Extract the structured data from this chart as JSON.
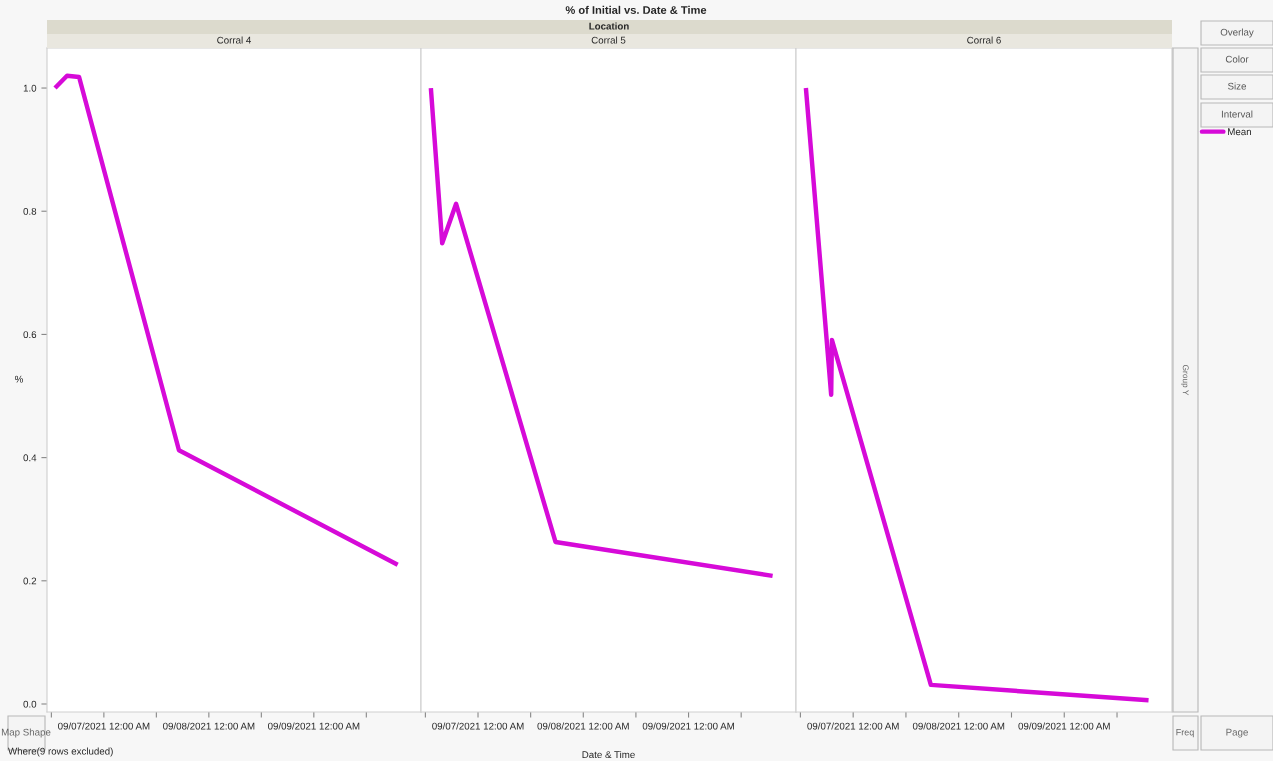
{
  "chart_data": [
    {
      "type": "line",
      "title": "Corral 4",
      "ylabel": "%",
      "grid": false,
      "tick_labels": "xy",
      "annotations": [
        "% of Initial vs. Date & Time",
        "Location",
        "Overlay",
        "Color",
        "Size",
        "Interval",
        "Group Y",
        "Map Shape",
        "Freq",
        "Page",
        "Where(9 rows excluded)"
      ],
      "xlim": [
        "2021-09-06T11:00",
        "2021-09-10T00:30"
      ],
      "ylim": [
        -0.013,
        1.065
      ],
      "xticks": [
        {
          "value": "2021-09-06T12:00",
          "label": null
        },
        {
          "value": "2021-09-07T00:00",
          "label": "09/07/2021 12:00 AM"
        },
        {
          "value": "2021-09-07T12:00",
          "label": null
        },
        {
          "value": "2021-09-08T00:00",
          "label": "09/08/2021 12:00 AM"
        },
        {
          "value": "2021-09-08T12:00",
          "label": null
        },
        {
          "value": "2021-09-09T00:00",
          "label": "09/09/2021 12:00 AM"
        },
        {
          "value": "2021-09-09T12:00",
          "label": null
        }
      ],
      "yticks": [
        {
          "value": 0,
          "label": "0.0"
        },
        0.2,
        0.4,
        0.6,
        0.8,
        {
          "value": 1,
          "label": "1.0"
        }
      ],
      "series": [
        {
          "color": "#d60ad8",
          "x": [
            "2021-09-06T12:50",
            "2021-09-06T15:35",
            "2021-09-06T18:20",
            "2021-09-07T17:10",
            "2021-09-09T19:10"
          ],
          "values": [
            1.0,
            1.02,
            1.018,
            0.412,
            0.226
          ]
        }
      ]
    },
    {
      "type": "line",
      "title": "Corral 5",
      "xlabel": "Date & Time",
      "grid": false,
      "tick_labels": "x",
      "xlim": [
        "2021-09-06T11:00",
        "2021-09-10T00:30"
      ],
      "ylim": [
        -0.013,
        1.065
      ],
      "xticks": [
        {
          "value": "2021-09-06T12:00",
          "label": null
        },
        {
          "value": "2021-09-07T00:00",
          "label": "09/07/2021 12:00 AM"
        },
        {
          "value": "2021-09-07T12:00",
          "label": null
        },
        {
          "value": "2021-09-08T00:00",
          "label": "09/08/2021 12:00 AM"
        },
        {
          "value": "2021-09-08T12:00",
          "label": null
        },
        {
          "value": "2021-09-09T00:00",
          "label": "09/09/2021 12:00 AM"
        },
        {
          "value": "2021-09-09T12:00",
          "label": null
        }
      ],
      "series": [
        {
          "color": "#d60ad8",
          "x": [
            "2021-09-06T13:15",
            "2021-09-06T15:50",
            "2021-09-06T19:00",
            "2021-09-07T17:40",
            "2021-09-09T19:10"
          ],
          "values": [
            1.0,
            0.748,
            0.812,
            0.263,
            0.208
          ]
        }
      ]
    },
    {
      "type": "line",
      "title": "Corral 6",
      "grid": false,
      "tick_labels": "x",
      "legend": "right",
      "xlim": [
        "2021-09-06T11:00",
        "2021-09-10T00:30"
      ],
      "ylim": [
        -0.013,
        1.065
      ],
      "xticks": [
        {
          "value": "2021-09-06T12:00",
          "label": null
        },
        {
          "value": "2021-09-07T00:00",
          "label": "09/07/2021 12:00 AM"
        },
        {
          "value": "2021-09-07T12:00",
          "label": null
        },
        {
          "value": "2021-09-08T00:00",
          "label": "09/08/2021 12:00 AM"
        },
        {
          "value": "2021-09-08T12:00",
          "label": null
        },
        {
          "value": "2021-09-09T00:00",
          "label": "09/09/2021 12:00 AM"
        },
        {
          "value": "2021-09-09T12:00",
          "label": null
        }
      ],
      "series": [
        {
          "name": "Mean",
          "color": "#d60ad8",
          "x": [
            "2021-09-06T13:15",
            "2021-09-06T19:00",
            "2021-09-06T19:10",
            "2021-09-07T17:40",
            "2021-09-09T19:10"
          ],
          "values": [
            1.0,
            0.502,
            0.591,
            0.031,
            0.006
          ]
        }
      ]
    }
  ]
}
